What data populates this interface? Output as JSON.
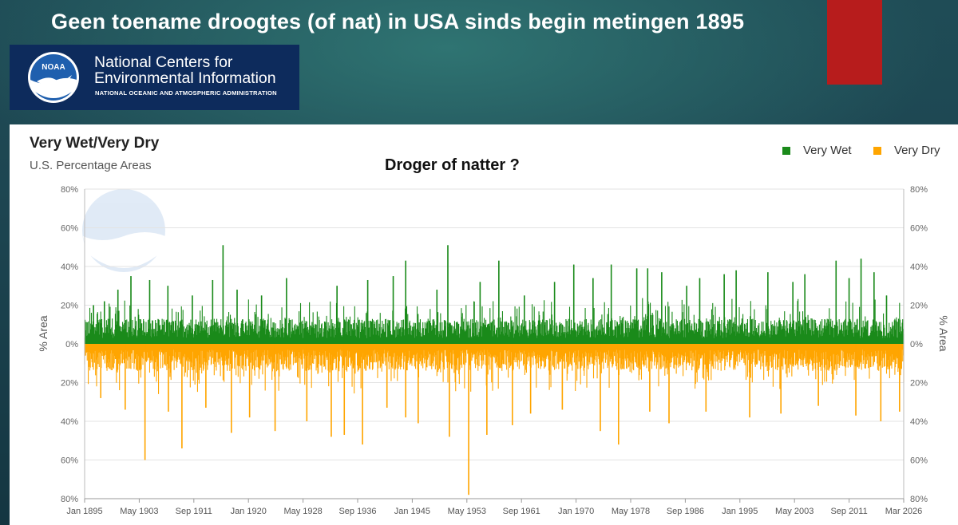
{
  "slide": {
    "title": "Geen toename droogtes (of nat)  in USA sinds begin metingen 1895"
  },
  "logo": {
    "emblem_text": "NOAA",
    "line1": "National Centers for",
    "line2": "Environmental Information",
    "line3": "NATIONAL OCEANIC AND ATMOSPHERIC ADMINISTRATION"
  },
  "chart": {
    "title": "Very Wet/Very Dry",
    "subtitle": "U.S. Percentage Areas",
    "question": "Droger of natter ?",
    "legend": [
      {
        "name": "Very Wet",
        "color": "#1a8a1a"
      },
      {
        "name": "Very Dry",
        "color": "#ffa500"
      }
    ],
    "ylabel_left": "% Area",
    "ylabel_right": "% Area"
  },
  "chart_data": {
    "type": "bar",
    "xlabel": "",
    "ylabel": "% Area",
    "y_ticks": [
      "80%",
      "60%",
      "40%",
      "20%",
      "0%",
      "20%",
      "40%",
      "60%",
      "80%"
    ],
    "ylim": [
      -80,
      80
    ],
    "x_tick_labels": [
      "Jan 1895",
      "May 1903",
      "Sep 1911",
      "Jan 1920",
      "May 1928",
      "Sep 1936",
      "Jan 1945",
      "May 1953",
      "Sep 1961",
      "Jan 1970",
      "May 1978",
      "Sep 1986",
      "Jan 1995",
      "May 2003",
      "Sep 2011",
      "Mar 2026"
    ],
    "x_range": [
      "1895-01",
      "2026-03"
    ],
    "grid": true,
    "legend_position": "top-right",
    "series": [
      {
        "name": "Very Wet",
        "color": "#1a8a1a",
        "direction": "up",
        "peaks": [
          [
            "1896-06",
            20
          ],
          [
            "1898-03",
            22
          ],
          [
            "1900-05",
            28
          ],
          [
            "1902-06",
            35
          ],
          [
            "1905-06",
            33
          ],
          [
            "1908-05",
            30
          ],
          [
            "1912-04",
            25
          ],
          [
            "1915-07",
            33
          ],
          [
            "1917-03",
            51
          ],
          [
            "1919-06",
            28
          ],
          [
            "1923-05",
            25
          ],
          [
            "1927-05",
            34
          ],
          [
            "1935-06",
            30
          ],
          [
            "1940-05",
            33
          ],
          [
            "1944-06",
            35
          ],
          [
            "1946-06",
            43
          ],
          [
            "1951-06",
            28
          ],
          [
            "1953-03",
            51
          ],
          [
            "1958-05",
            32
          ],
          [
            "1961-05",
            43
          ],
          [
            "1965-06",
            25
          ],
          [
            "1970-04",
            32
          ],
          [
            "1973-05",
            41
          ],
          [
            "1976-06",
            34
          ],
          [
            "1979-05",
            41
          ],
          [
            "1983-06",
            39
          ],
          [
            "1985-03",
            39
          ],
          [
            "1987-06",
            37
          ],
          [
            "1991-06",
            30
          ],
          [
            "1993-07",
            34
          ],
          [
            "1997-06",
            36
          ],
          [
            "1999-05",
            38
          ],
          [
            "2004-06",
            37
          ],
          [
            "2008-06",
            32
          ],
          [
            "2010-05",
            36
          ],
          [
            "2015-05",
            43
          ],
          [
            "2017-06",
            34
          ],
          [
            "2019-05",
            44
          ],
          [
            "2021-06",
            37
          ],
          [
            "2023-06",
            25
          ]
        ]
      },
      {
        "name": "Very Dry",
        "color": "#ffa500",
        "direction": "down",
        "peaks": [
          [
            "1897-08",
            28
          ],
          [
            "1901-07",
            34
          ],
          [
            "1904-09",
            60
          ],
          [
            "1908-06",
            35
          ],
          [
            "1910-08",
            54
          ],
          [
            "1914-06",
            33
          ],
          [
            "1918-07",
            46
          ],
          [
            "1921-06",
            38
          ],
          [
            "1925-07",
            45
          ],
          [
            "1930-08",
            40
          ],
          [
            "1934-07",
            48
          ],
          [
            "1936-08",
            47
          ],
          [
            "1939-07",
            52
          ],
          [
            "1943-06",
            33
          ],
          [
            "1946-06",
            38
          ],
          [
            "1948-06",
            41
          ],
          [
            "1953-06",
            48
          ],
          [
            "1956-07",
            78
          ],
          [
            "1959-06",
            47
          ],
          [
            "1963-07",
            42
          ],
          [
            "1966-06",
            36
          ],
          [
            "1971-07",
            34
          ],
          [
            "1977-08",
            45
          ],
          [
            "1980-07",
            52
          ],
          [
            "1985-07",
            35
          ],
          [
            "1988-08",
            41
          ],
          [
            "1994-07",
            35
          ],
          [
            "2001-07",
            38
          ],
          [
            "2006-07",
            36
          ],
          [
            "2012-07",
            32
          ],
          [
            "2018-07",
            37
          ],
          [
            "2022-07",
            40
          ],
          [
            "2025-07",
            35
          ]
        ]
      }
    ]
  }
}
